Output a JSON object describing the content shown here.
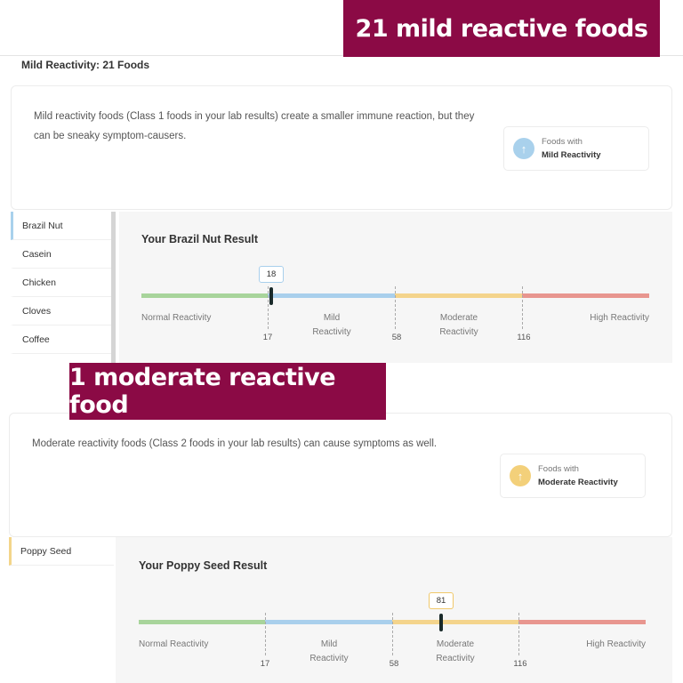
{
  "top_section": {
    "banner": "21 mild reactive foods",
    "section_title": "Mild Reactivity: 21 Foods",
    "description": "Mild reactivity foods (Class 1 foods in your lab results) create a smaller immune reaction, but they can be sneaky symptom-causers.",
    "badge": {
      "line1": "Foods with",
      "line2": "Mild Reactivity",
      "icon": "arrow-up-icon",
      "color": "#a9d1ec"
    },
    "foods": [
      "Brazil Nut",
      "Casein",
      "Chicken",
      "Cloves",
      "Coffee"
    ],
    "selected_food": "Brazil Nut",
    "result_title": "Your Brazil Nut Result",
    "value": "18",
    "value_num": 18
  },
  "bottom_section": {
    "banner": "1 moderate reactive food",
    "description": "Moderate reactivity foods (Class 2 foods in your lab results) can cause symptoms as well.",
    "badge": {
      "line1": "Foods with",
      "line2": "Moderate Reactivity",
      "icon": "arrow-up-icon",
      "color": "#f3d07a"
    },
    "foods": [
      "Poppy Seed"
    ],
    "selected_food": "Poppy Seed",
    "result_title": "Your Poppy Seed Result",
    "value": "81",
    "value_num": 81
  },
  "scale": {
    "zones": [
      {
        "label": "Normal Reactivity",
        "color": "#a8d49b"
      },
      {
        "label": "Mild\nReactivity",
        "color": "#a9cfec"
      },
      {
        "label": "Moderate\nReactivity",
        "color": "#f4d48c"
      },
      {
        "label": "High Reactivity",
        "color": "#e8968f"
      }
    ],
    "thresholds": [
      "17",
      "58",
      "116"
    ]
  }
}
